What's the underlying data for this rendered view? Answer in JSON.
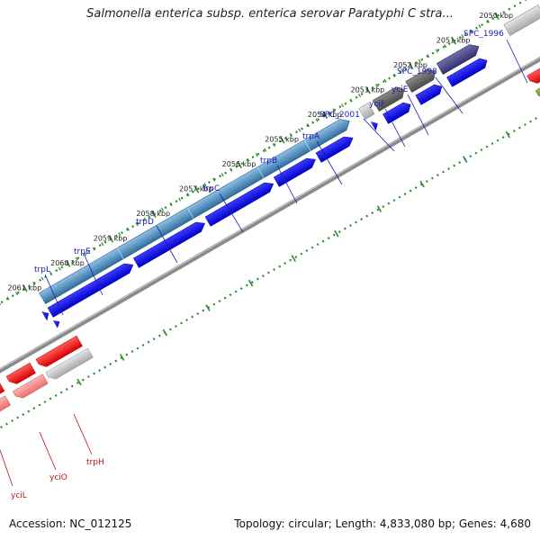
{
  "header": {
    "title": "Salmonella enterica subsp. enterica serovar Paratyphi C stra..."
  },
  "footer": {
    "accession": "Accession: NC_012125",
    "summary": "Topology: circular; Length: 4,833,080 bp; Genes: 4,680"
  },
  "map": {
    "ticks": [
      {
        "label": "2050 kbp",
        "kbp": 2050
      },
      {
        "label": "2051 kbp",
        "kbp": 2051
      },
      {
        "label": "2052 kbp",
        "kbp": 2052
      },
      {
        "label": "2053 kbp",
        "kbp": 2053
      },
      {
        "label": "2054 kbp",
        "kbp": 2054
      },
      {
        "label": "2055 kbp",
        "kbp": 2055
      },
      {
        "label": "2056 kbp",
        "kbp": 2056
      },
      {
        "label": "2057 kbp",
        "kbp": 2057
      },
      {
        "label": "2058 kbp",
        "kbp": 2058
      },
      {
        "label": "2059 kbp",
        "kbp": 2059
      },
      {
        "label": "2060 kbp",
        "kbp": 2060
      },
      {
        "label": "2061 kbp",
        "kbp": 2061
      }
    ],
    "forward_labels": [
      "SPC_1996",
      "SPC_1998",
      "yciE",
      "yciF",
      "SPC_2001",
      "trpA",
      "trpB",
      "trpC",
      "trpD",
      "trpE",
      "trpL"
    ],
    "reverse_labels": [
      "trpH",
      "yciO",
      "yciL"
    ],
    "colors": {
      "forward_cds": "#0000ee",
      "reverse_cds": "#ee1111",
      "trp_operon": "#3d80b3",
      "backbone": "#8a8a8a",
      "gc_skew": "#2a8a2a"
    }
  }
}
